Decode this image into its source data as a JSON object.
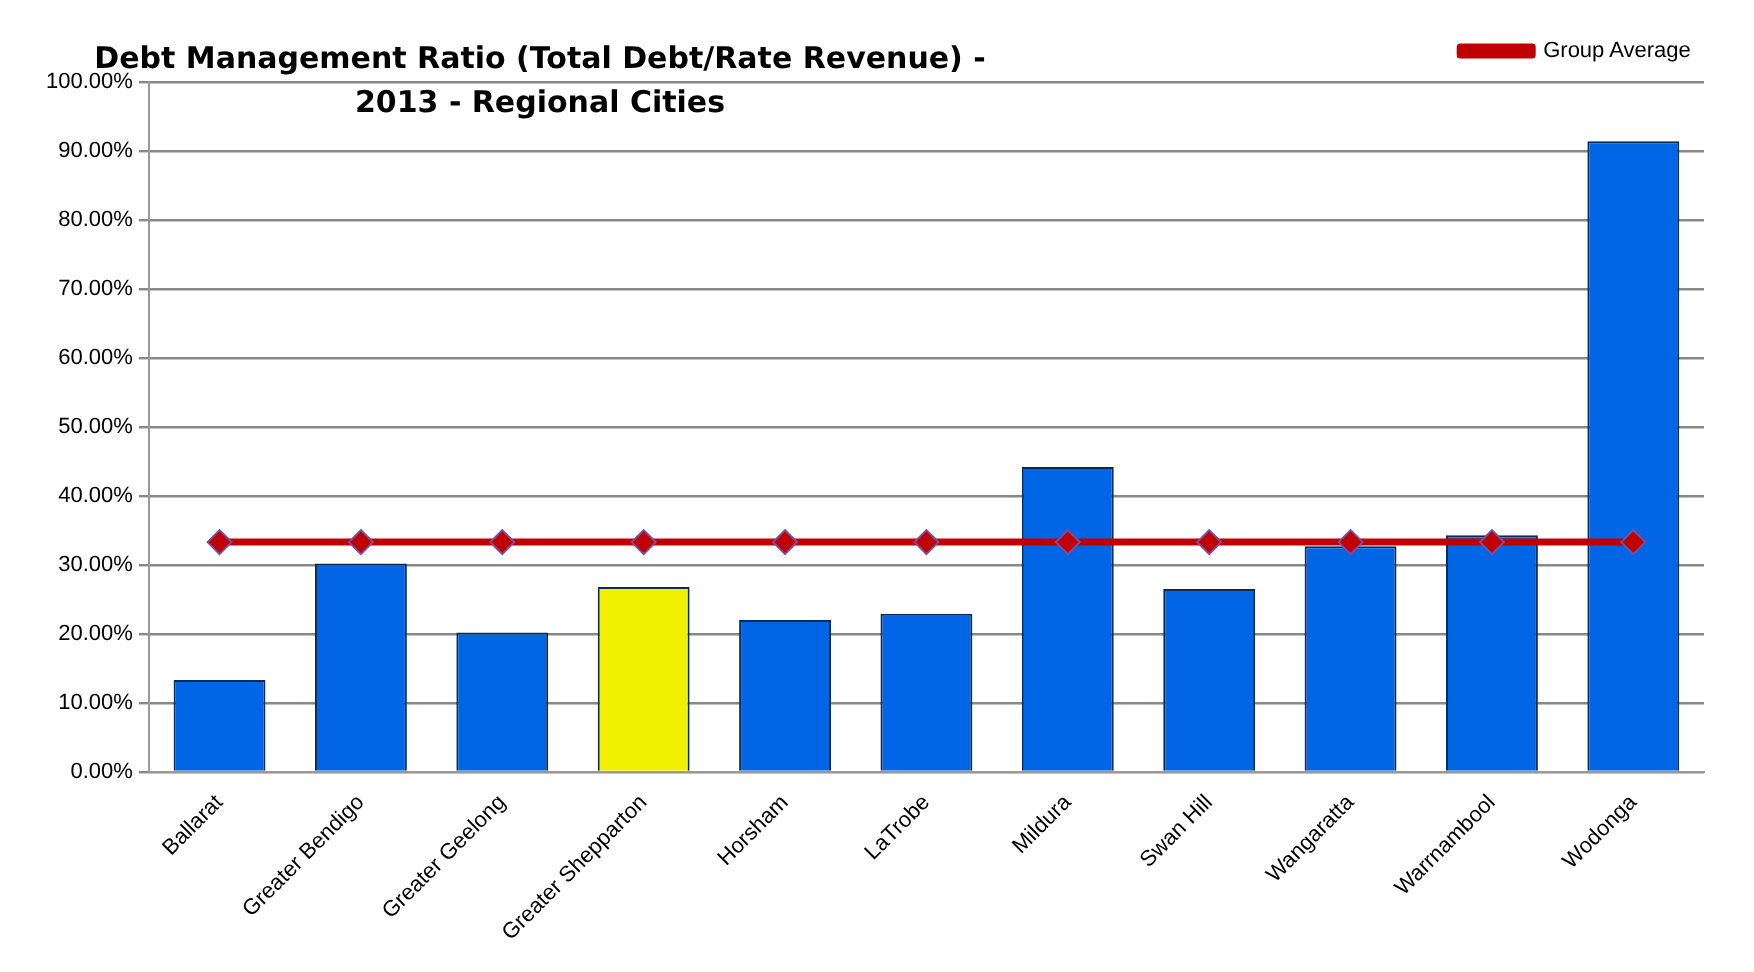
{
  "chart_data": {
    "type": "bar",
    "title": "Debt Management Ratio (Total Debt/Rate Revenue) - 2013 - Regional Cities",
    "categories": [
      "Ballarat",
      "Greater Bendigo",
      "Greater Geelong",
      "Greater Shepparton",
      "Horsham",
      "LaTrobe",
      "Mildura",
      "Swan Hill",
      "Wangaratta",
      "Warrnambool",
      "Wodonga"
    ],
    "series": [
      {
        "colors": [
          "#0066e6",
          "#0066e6",
          "#0066e6",
          "#f0f000",
          "#0066e6",
          "#0066e6",
          "#0066e6",
          "#0066e6",
          "#0066e6",
          "#0066e6",
          "#0066e6"
        ],
        "values": [
          13.3,
          30.2,
          20.2,
          26.8,
          22.0,
          22.9,
          44.2,
          26.5,
          32.7,
          34.3,
          91.4
        ]
      },
      {
        "type": "line",
        "name": "Group Average",
        "color": "#c00000",
        "values": [
          33.3,
          33.3,
          33.3,
          33.3,
          33.3,
          33.3,
          33.3,
          33.3,
          33.3,
          33.3,
          33.3
        ]
      }
    ],
    "ylim": [
      0,
      100
    ],
    "yticks": [
      {
        "value": 0,
        "label": "0.00%"
      },
      {
        "value": 10,
        "label": "10.00%"
      },
      {
        "value": 20,
        "label": "20.00%"
      },
      {
        "value": 30,
        "label": "30.00%"
      },
      {
        "value": 40,
        "label": "40.00%"
      },
      {
        "value": 50,
        "label": "50.00%"
      },
      {
        "value": 60,
        "label": "60.00%"
      },
      {
        "value": 70,
        "label": "70.00%"
      },
      {
        "value": 80,
        "label": "80.00%"
      },
      {
        "value": 90,
        "label": "90.00%"
      },
      {
        "value": 100,
        "label": "100.00%"
      }
    ],
    "grid": "y",
    "legend": "top right",
    "marker": "diamond"
  }
}
